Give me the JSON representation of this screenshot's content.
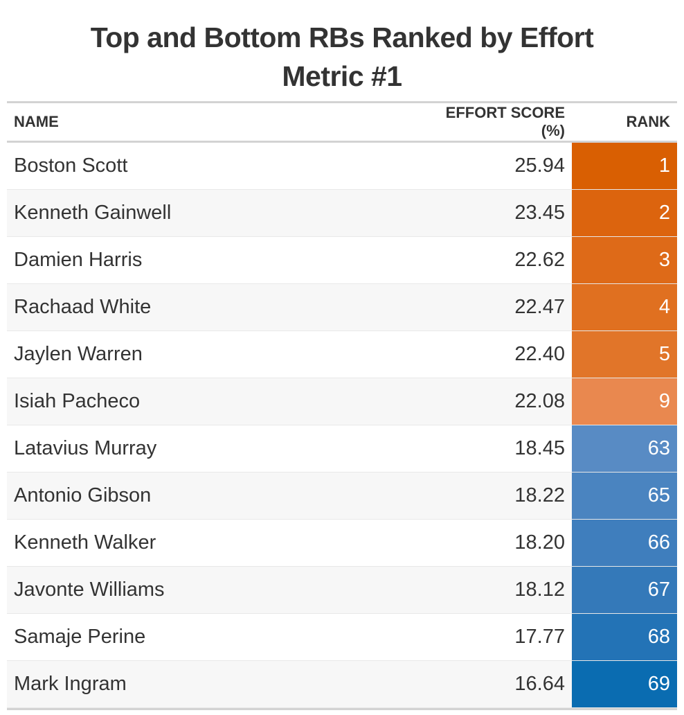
{
  "title_lines": [
    "Top and Bottom RBs Ranked by Effort",
    "Metric #1"
  ],
  "colors": {
    "rank_1": "#d95f02",
    "rank_2": "#dc640e",
    "rank_3": "#de6a18",
    "rank_4": "#e07020",
    "rank_5": "#e17529",
    "rank_9": "#e9884f",
    "rank_63": "#588bc4",
    "rank_65": "#4a84c0",
    "rank_66": "#3f7ebd",
    "rank_67": "#3479b9",
    "rank_68": "#2373b6",
    "rank_69": "#0a6cb1"
  },
  "chart_data": {
    "type": "table",
    "title": "Top and Bottom RBs Ranked by Effort Metric #1",
    "columns": [
      "NAME",
      "EFFORT SCORE (%)",
      "RANK"
    ],
    "rows": [
      {
        "name": "Boston Scott",
        "score": "25.94",
        "rank": "1",
        "color": "#d95f02"
      },
      {
        "name": "Kenneth Gainwell",
        "score": "23.45",
        "rank": "2",
        "color": "#dc640e"
      },
      {
        "name": "Damien Harris",
        "score": "22.62",
        "rank": "3",
        "color": "#de6a18"
      },
      {
        "name": "Rachaad White",
        "score": "22.47",
        "rank": "4",
        "color": "#e07020"
      },
      {
        "name": "Jaylen Warren",
        "score": "22.40",
        "rank": "5",
        "color": "#e17529"
      },
      {
        "name": "Isiah Pacheco",
        "score": "22.08",
        "rank": "9",
        "color": "#e9884f"
      },
      {
        "name": "Latavius Murray",
        "score": "18.45",
        "rank": "63",
        "color": "#588bc4"
      },
      {
        "name": "Antonio Gibson",
        "score": "18.22",
        "rank": "65",
        "color": "#4a84c0"
      },
      {
        "name": "Kenneth Walker",
        "score": "18.20",
        "rank": "66",
        "color": "#3f7ebd"
      },
      {
        "name": "Javonte Williams",
        "score": "18.12",
        "rank": "67",
        "color": "#3479b9"
      },
      {
        "name": "Samaje Perine",
        "score": "17.77",
        "rank": "68",
        "color": "#2373b6"
      },
      {
        "name": "Mark Ingram",
        "score": "16.64",
        "rank": "69",
        "color": "#0a6cb1"
      }
    ]
  }
}
